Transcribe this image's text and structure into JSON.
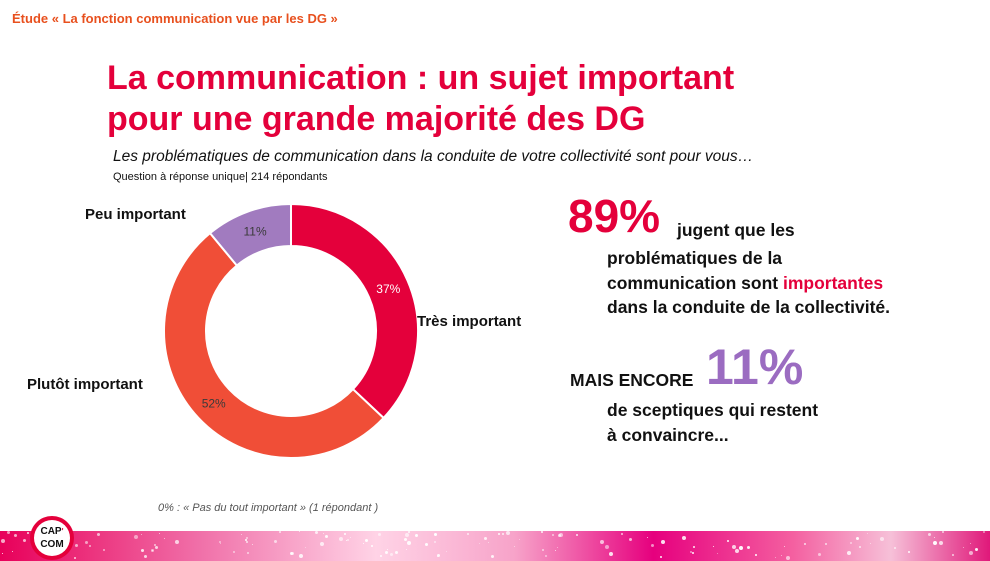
{
  "header": {
    "study": "Étude « La fonction communication vue par les DG »",
    "title_line1": "La communication : un sujet important",
    "title_line2": "pour une grande majorité des DG",
    "subtitle": "Les problématiques de communication dans la conduite de votre collectivité sont pour vous…",
    "question_info": "Question à réponse unique| 214 répondants"
  },
  "chart_data": {
    "type": "pie",
    "donut": true,
    "categories": [
      "Très important",
      "Plutôt important",
      "Peu important"
    ],
    "values": [
      37,
      52,
      11
    ],
    "value_labels": [
      "37%",
      "52%",
      "11%"
    ],
    "colors": [
      "#e4003b",
      "#f04e37",
      "#a17bbf"
    ],
    "legend": "labels beside slices"
  },
  "stats": {
    "big_percent": "89%",
    "line1": "jugent que les",
    "line2": "problématiques de la",
    "line3_prefix": "communication sont ",
    "line3_highlight": "importantes",
    "line4": "dans la conduite de la collectivité.",
    "mais_encore": "MAIS ENCORE",
    "sceptic_percent": "11%",
    "sceptic_line1": "de sceptiques qui restent",
    "sceptic_line2": "à convaincre..."
  },
  "footnote": "0% : « Pas du tout important » (1 répondant )",
  "logo": {
    "top": "CAP",
    "sup": "'",
    "bottom": "COM"
  },
  "colors": {
    "brand_red": "#e4003b",
    "orange": "#e8501e",
    "purple": "#9b6cc1"
  }
}
